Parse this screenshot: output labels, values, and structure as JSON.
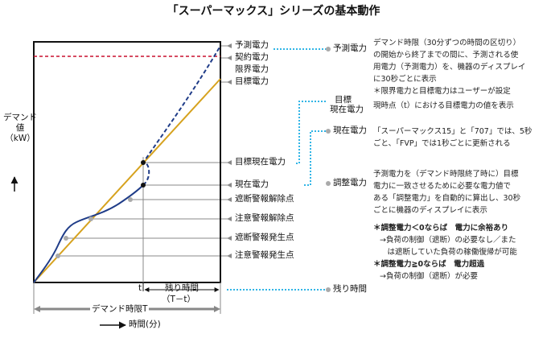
{
  "title": "「スーパーマックス」シリーズの基本動作",
  "y_axis": {
    "line1": "デマンド",
    "line2": "値",
    "line3": "（kW）"
  },
  "x_axis": {
    "demand_period": "デマンド時限T",
    "time": "時間(分)"
  },
  "time_marker": "t",
  "remaining": {
    "line1": "残り時間",
    "line2": "（T－t）"
  },
  "left_labels": {
    "forecast": "予測電力",
    "contract": "契約電力",
    "limit": "限界電力",
    "target": "目標電力",
    "target_now": "目標現在電力",
    "current": "現在電力",
    "cutoff_release": "遮断警報解除点",
    "caution_release": "注意警報解除点",
    "cutoff_issue": "遮断警報発生点",
    "caution_issue": "注意警報発生点"
  },
  "right_labels": {
    "forecast": "予測電力",
    "target_now": {
      "line1": "目標",
      "line2": "現在電力"
    },
    "current": "現在電力",
    "adjust": "調整電力",
    "remaining": "残り時間"
  },
  "descriptions": {
    "forecast": [
      "デマンド時限（30分ずつの時間の区切り）",
      "の開始から終了までの間に、予測される使",
      "用電力（予測電力）を、機器のディスプレイ",
      "に30秒ごとに表示",
      "＊限界電力と目標電力はユーザーが設定"
    ],
    "target_now": [
      "現時点（t）における目標電力の値を表示"
    ],
    "current": [
      "「スーパーマックス15」と「707」では、5秒",
      "ごと、「FVP」では1秒ごとに更新される"
    ],
    "adjust": [
      "予測電力を（デマンド時限終了時に）目標",
      "電力に一致させるために必要な電力値で",
      "ある「調整電力」を自動的に算出し、30秒",
      "ごとに機器のディスプレイに表示"
    ],
    "adjust_neg": "＊調整電力＜0ならば　電力に余裕あり",
    "adjust_neg_note": [
      "→負荷の制御（遮断）の必要なし／また",
      "　は遮断していた負荷の稼働復帰が可能"
    ],
    "adjust_pos": "＊調整電力≧0ならば　電力超過",
    "adjust_pos_note": [
      "→負荷の制御（遮断）が必要"
    ]
  },
  "colors": {
    "target_line": "#d6a21e",
    "demand_curve": "#1f3c88",
    "contract_line": "#c8102e",
    "leader": "#31b5e6",
    "arrow": "#888888",
    "dot": "#aaaaaa"
  }
}
